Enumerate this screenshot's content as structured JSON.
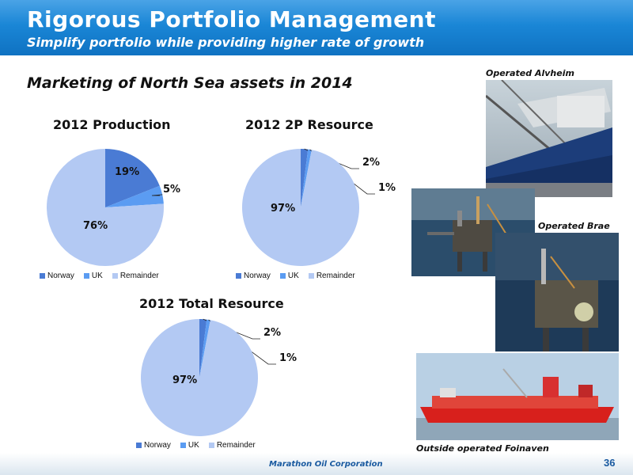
{
  "header": {
    "title": "Rigorous Portfolio Management",
    "subtitle": "Simplify portfolio while providing higher rate of growth"
  },
  "section_heading": "Marketing of North Sea assets in 2014",
  "colors": {
    "norway": "#4a7bd4",
    "uk": "#5b9cf2",
    "remainder": "#b3c9f3"
  },
  "chart_data": [
    {
      "type": "pie",
      "title": "2012 Production",
      "categories": [
        "Norway",
        "UK",
        "Remainder"
      ],
      "values": [
        19,
        5,
        76
      ],
      "labels": [
        "19%",
        "5%",
        "76%"
      ],
      "legend_position": "bottom"
    },
    {
      "type": "pie",
      "title": "2012 2P Resource",
      "categories": [
        "Norway",
        "UK",
        "Remainder"
      ],
      "values": [
        2,
        1,
        97
      ],
      "labels": [
        "2%",
        "1%",
        "97%"
      ],
      "legend_position": "bottom"
    },
    {
      "type": "pie",
      "title": "2012 Total Resource",
      "categories": [
        "Norway",
        "UK",
        "Remainder"
      ],
      "values": [
        2,
        1,
        97
      ],
      "labels": [
        "2%",
        "1%",
        "97%"
      ],
      "legend_position": "bottom"
    }
  ],
  "photos": [
    {
      "caption": "Operated Alvheim"
    },
    {
      "caption": ""
    },
    {
      "caption": "Operated Brae"
    },
    {
      "caption": "Outside operated Foinaven"
    }
  ],
  "footer": {
    "company": "Marathon Oil Corporation",
    "page_number": "36"
  }
}
